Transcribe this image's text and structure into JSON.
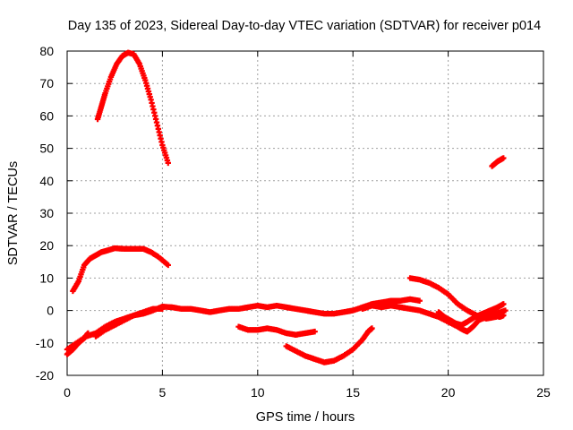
{
  "chart_data": {
    "type": "scatter",
    "title": "Day 135 of 2023, Sidereal Day-to-day VTEC variation (SDTVAR) for receiver p014",
    "xlabel": "GPS time / hours",
    "ylabel": "SDTVAR / TECUs",
    "xlim": [
      0,
      25
    ],
    "ylim": [
      -20,
      80
    ],
    "xticks": [
      0,
      5,
      10,
      15,
      20,
      25
    ],
    "yticks": [
      -20,
      -10,
      0,
      10,
      20,
      30,
      40,
      50,
      60,
      70,
      80
    ],
    "grid": true,
    "marker": "plus",
    "color": "#ff0000",
    "series": [
      {
        "name": "arc-high",
        "points": [
          [
            1.6,
            59
          ],
          [
            1.8,
            63
          ],
          [
            2.0,
            67
          ],
          [
            2.3,
            72
          ],
          [
            2.6,
            76
          ],
          [
            2.9,
            78.5
          ],
          [
            3.2,
            79.5
          ],
          [
            3.5,
            79
          ],
          [
            3.8,
            76
          ],
          [
            4.1,
            71
          ],
          [
            4.4,
            65
          ],
          [
            4.7,
            58
          ],
          [
            5.0,
            51
          ],
          [
            5.3,
            45.5
          ]
        ]
      },
      {
        "name": "arc-mid",
        "points": [
          [
            0.3,
            6
          ],
          [
            0.6,
            9
          ],
          [
            0.9,
            14
          ],
          [
            1.2,
            16
          ],
          [
            1.5,
            17
          ],
          [
            1.8,
            18
          ],
          [
            2.1,
            18.5
          ],
          [
            2.5,
            19.2
          ],
          [
            3.0,
            19
          ],
          [
            3.5,
            19
          ],
          [
            4.0,
            19
          ],
          [
            4.4,
            18
          ],
          [
            4.8,
            16.5
          ],
          [
            5.3,
            14
          ]
        ]
      },
      {
        "name": "arc-late",
        "points": [
          [
            22.3,
            44.5
          ],
          [
            22.6,
            46
          ],
          [
            22.9,
            47
          ]
        ]
      },
      {
        "name": "main-band",
        "points": [
          [
            0.0,
            -12
          ],
          [
            0.5,
            -10
          ],
          [
            1.0,
            -8
          ],
          [
            1.5,
            -7
          ],
          [
            2.0,
            -5
          ],
          [
            2.5,
            -3.5
          ],
          [
            3.0,
            -2.5
          ],
          [
            3.5,
            -1.5
          ],
          [
            4.0,
            -1
          ],
          [
            4.5,
            0
          ],
          [
            5.0,
            1.2
          ],
          [
            5.5,
            1
          ],
          [
            6.0,
            0.5
          ],
          [
            6.5,
            0.5
          ],
          [
            7.0,
            0
          ],
          [
            7.5,
            -0.5
          ],
          [
            8.0,
            0
          ],
          [
            8.5,
            0.5
          ],
          [
            9.0,
            0.5
          ],
          [
            9.5,
            1
          ],
          [
            10.0,
            1.5
          ],
          [
            10.5,
            1
          ],
          [
            11.0,
            1.5
          ],
          [
            11.5,
            1
          ],
          [
            12.0,
            0.5
          ],
          [
            12.5,
            0
          ],
          [
            13.0,
            -0.5
          ],
          [
            13.5,
            -1
          ],
          [
            14.0,
            -1
          ],
          [
            14.5,
            -0.5
          ],
          [
            15.0,
            0
          ],
          [
            15.5,
            1
          ],
          [
            16.0,
            2
          ],
          [
            16.5,
            2.5
          ],
          [
            17.0,
            3
          ],
          [
            17.5,
            3
          ],
          [
            18.0,
            3.5
          ],
          [
            18.5,
            3
          ]
        ]
      },
      {
        "name": "band-start",
        "points": [
          [
            0.0,
            -13.5
          ],
          [
            0.3,
            -12
          ],
          [
            0.6,
            -10
          ],
          [
            0.9,
            -8.5
          ],
          [
            1.1,
            -7
          ]
        ]
      },
      {
        "name": "band-lower",
        "points": [
          [
            1.5,
            -8
          ],
          [
            2.0,
            -6
          ],
          [
            2.5,
            -4.5
          ],
          [
            3.0,
            -3
          ],
          [
            3.5,
            -1.5
          ],
          [
            4.0,
            -0.5
          ],
          [
            4.5,
            0.5
          ],
          [
            5.0,
            0.5
          ]
        ]
      },
      {
        "name": "band-late",
        "points": [
          [
            15.5,
            0.5
          ],
          [
            16.0,
            1.5
          ],
          [
            16.5,
            1
          ],
          [
            17.0,
            1.5
          ],
          [
            17.5,
            1
          ],
          [
            18.0,
            0.5
          ],
          [
            18.5,
            0
          ],
          [
            19.0,
            -1
          ],
          [
            19.5,
            -2
          ],
          [
            20.0,
            -3.5
          ],
          [
            20.5,
            -5
          ],
          [
            20.8,
            -6
          ],
          [
            21.0,
            -6.5
          ],
          [
            21.3,
            -5
          ],
          [
            21.6,
            -3
          ],
          [
            22.0,
            -2
          ],
          [
            22.5,
            -1
          ],
          [
            23.0,
            0
          ]
        ]
      },
      {
        "name": "band-late-2",
        "points": [
          [
            19.5,
            -0.5
          ],
          [
            19.8,
            -2
          ],
          [
            20.1,
            -3
          ],
          [
            20.4,
            -4
          ],
          [
            20.7,
            -4.5
          ],
          [
            21.0,
            -3.5
          ],
          [
            21.4,
            -2
          ],
          [
            21.8,
            -1
          ],
          [
            22.2,
            0
          ],
          [
            22.6,
            1
          ],
          [
            22.9,
            2
          ]
        ]
      },
      {
        "name": "band-end",
        "points": [
          [
            21.5,
            -2
          ],
          [
            21.8,
            -1
          ],
          [
            22.1,
            -1
          ],
          [
            22.4,
            -1.5
          ],
          [
            22.7,
            -2
          ],
          [
            22.9,
            -1.5
          ]
        ]
      },
      {
        "name": "arc-upper-right",
        "points": [
          [
            18.0,
            10
          ],
          [
            18.5,
            9.5
          ],
          [
            19.0,
            8.5
          ],
          [
            19.5,
            7
          ],
          [
            20.0,
            5
          ],
          [
            20.5,
            2
          ],
          [
            21.0,
            0
          ],
          [
            21.5,
            -1.5
          ],
          [
            22.0,
            -2.5
          ],
          [
            22.5,
            -2
          ]
        ]
      },
      {
        "name": "arc-low-1",
        "points": [
          [
            9.0,
            -5
          ],
          [
            9.5,
            -6
          ],
          [
            10.0,
            -6
          ],
          [
            10.5,
            -5.5
          ],
          [
            11.0,
            -6
          ],
          [
            11.5,
            -7
          ],
          [
            12.0,
            -7.5
          ],
          [
            12.5,
            -7
          ],
          [
            13.0,
            -6.5
          ]
        ]
      },
      {
        "name": "arc-low-2",
        "points": [
          [
            11.5,
            -11
          ],
          [
            12.0,
            -12.5
          ],
          [
            12.5,
            -14
          ],
          [
            13.0,
            -15
          ],
          [
            13.5,
            -16
          ],
          [
            14.0,
            -15.5
          ],
          [
            14.5,
            -14
          ],
          [
            15.0,
            -12
          ],
          [
            15.5,
            -9
          ],
          [
            15.8,
            -6.5
          ],
          [
            16.0,
            -5.5
          ]
        ]
      }
    ]
  }
}
